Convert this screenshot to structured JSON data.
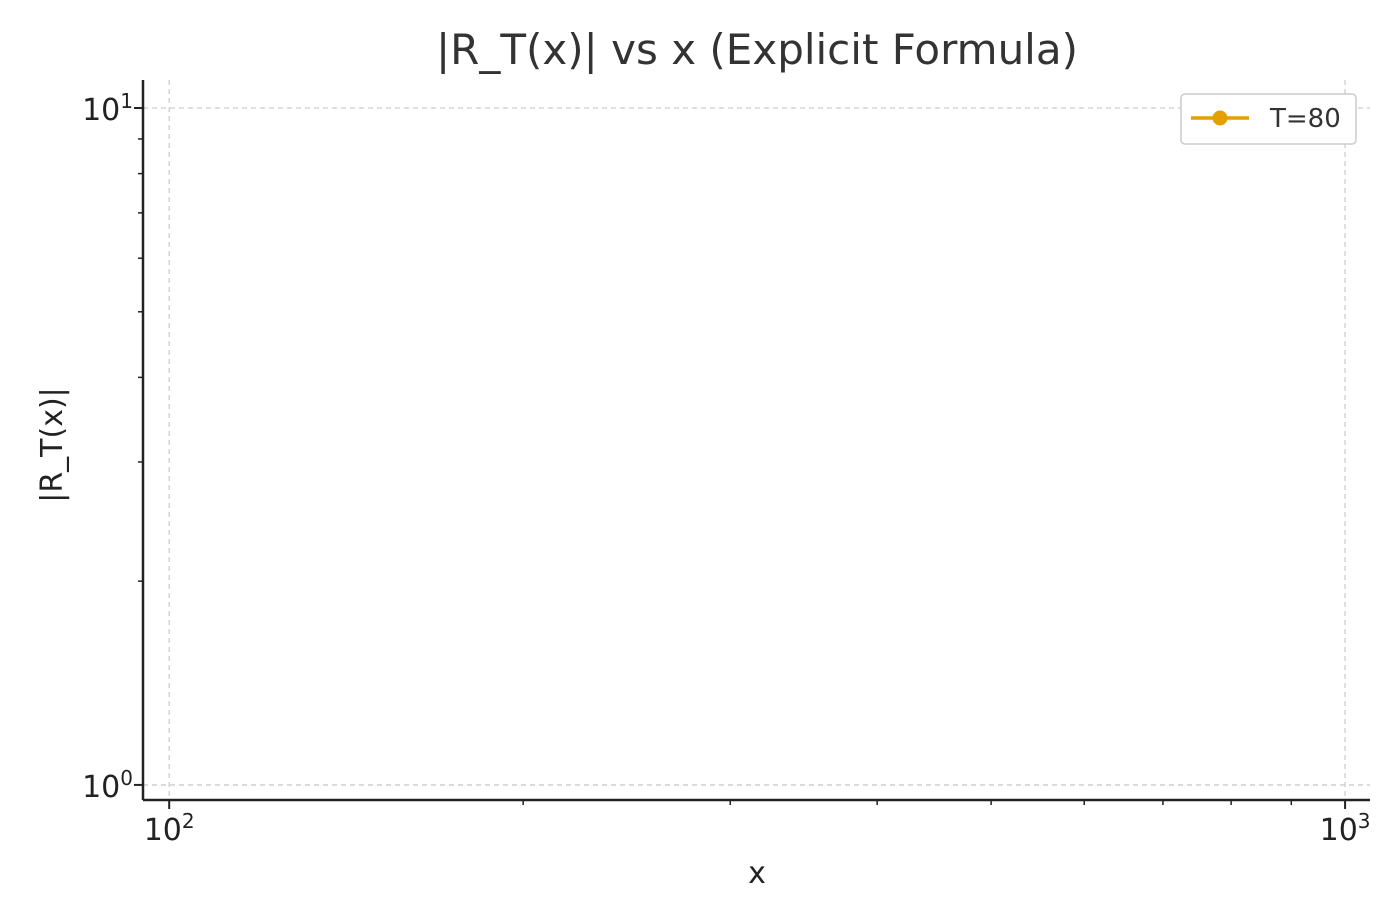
{
  "chart_data": {
    "type": "line",
    "title": "|R_T(x)| vs x (Explicit Formula)",
    "xlabel": "x",
    "ylabel": "|R_T(x)|",
    "xscale": "log",
    "yscale": "log",
    "xlim": [
      95,
      1050
    ],
    "ylim": [
      0.95,
      11.0
    ],
    "grid": true,
    "legend_position": "top-right",
    "x_ticks": [
      {
        "value": 100,
        "base": "10",
        "exp": "2"
      },
      {
        "value": 1000,
        "base": "10",
        "exp": "3"
      }
    ],
    "y_ticks": [
      {
        "value": 1,
        "base": "10",
        "exp": "0"
      },
      {
        "value": 10,
        "base": "10",
        "exp": "1"
      }
    ],
    "series": [
      {
        "name": "T=80",
        "color": "#E69F00",
        "marker": "circle",
        "x": [],
        "y": []
      }
    ]
  }
}
